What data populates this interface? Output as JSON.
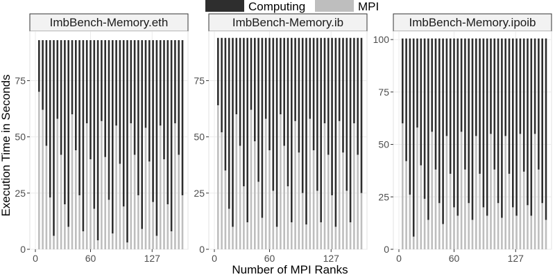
{
  "colors": {
    "computing": "#2e2e2e",
    "mpi": "#bebebe",
    "strip_bg": "#f2f2f2",
    "strip_border": "#333333",
    "grid": "#ebebeb",
    "tick": "#4d4d4d"
  },
  "chart_data": {
    "type": "bar",
    "stacked": true,
    "facet_layout": "1x3, free y scales",
    "legend_position": "top",
    "legend": [
      {
        "name": "Computing",
        "color": "#2e2e2e"
      },
      {
        "name": "MPI",
        "color": "#bebebe"
      }
    ],
    "xlabel": "Number of MPI Ranks",
    "ylabel": "Execution Time in Seconds",
    "xlim": [
      0,
      160
    ],
    "x_ticks": [
      0,
      60,
      127
    ],
    "grid": true,
    "panels": [
      {
        "title": "ImbBench-Memory.eth",
        "ylim": [
          0,
          97
        ],
        "y_ticks": [
          0,
          25,
          50,
          75
        ],
        "total": 93,
        "x": [
          4,
          8,
          12,
          16,
          20,
          24,
          28,
          32,
          36,
          40,
          44,
          48,
          52,
          56,
          60,
          64,
          68,
          72,
          76,
          80,
          84,
          88,
          92,
          96,
          100,
          104,
          108,
          112,
          116,
          120,
          124,
          128,
          132,
          136,
          140,
          144,
          148,
          152,
          156,
          160
        ],
        "mpi": [
          70,
          62,
          46,
          23,
          6,
          58,
          42,
          20,
          10,
          60,
          44,
          24,
          8,
          56,
          40,
          18,
          4,
          57,
          41,
          22,
          7,
          55,
          38,
          19,
          3,
          56,
          42,
          24,
          9,
          54,
          39,
          21,
          6,
          55,
          40,
          20,
          8,
          56,
          42,
          24
        ]
      },
      {
        "title": "ImbBench-Memory.ib",
        "ylim": [
          0,
          97
        ],
        "y_ticks": [
          0,
          25,
          50,
          75
        ],
        "total": 94,
        "x": [
          4,
          8,
          12,
          16,
          20,
          24,
          28,
          32,
          36,
          40,
          44,
          48,
          52,
          56,
          60,
          64,
          68,
          72,
          76,
          80,
          84,
          88,
          92,
          96,
          100,
          104,
          108,
          112,
          116,
          120,
          124,
          128,
          132,
          136,
          140,
          144,
          148,
          152,
          156,
          160
        ],
        "mpi": [
          64,
          52,
          35,
          18,
          10,
          60,
          46,
          28,
          12,
          62,
          48,
          30,
          14,
          58,
          44,
          26,
          10,
          60,
          46,
          28,
          12,
          57,
          43,
          25,
          11,
          58,
          44,
          26,
          12,
          56,
          42,
          24,
          10,
          57,
          43,
          26,
          12,
          56,
          42,
          25
        ]
      },
      {
        "title": "ImbBench-Memory.ipoib",
        "ylim": [
          0,
          104
        ],
        "y_ticks": [
          0,
          25,
          50,
          75,
          100
        ],
        "total": 100.5,
        "x": [
          4,
          8,
          12,
          16,
          20,
          24,
          28,
          32,
          36,
          40,
          44,
          48,
          52,
          56,
          60,
          64,
          68,
          72,
          76,
          80,
          84,
          88,
          92,
          96,
          100,
          104,
          108,
          112,
          116,
          120,
          124,
          128,
          132,
          136,
          140,
          144,
          148,
          152,
          156,
          160
        ],
        "mpi": [
          60,
          42,
          26,
          6,
          58,
          40,
          24,
          14,
          56,
          38,
          22,
          12,
          54,
          36,
          20,
          16,
          56,
          38,
          22,
          14,
          54,
          36,
          20,
          16,
          55,
          38,
          22,
          15,
          54,
          36,
          20,
          16,
          55,
          37,
          21,
          16,
          55,
          38,
          22,
          14
        ]
      }
    ]
  }
}
